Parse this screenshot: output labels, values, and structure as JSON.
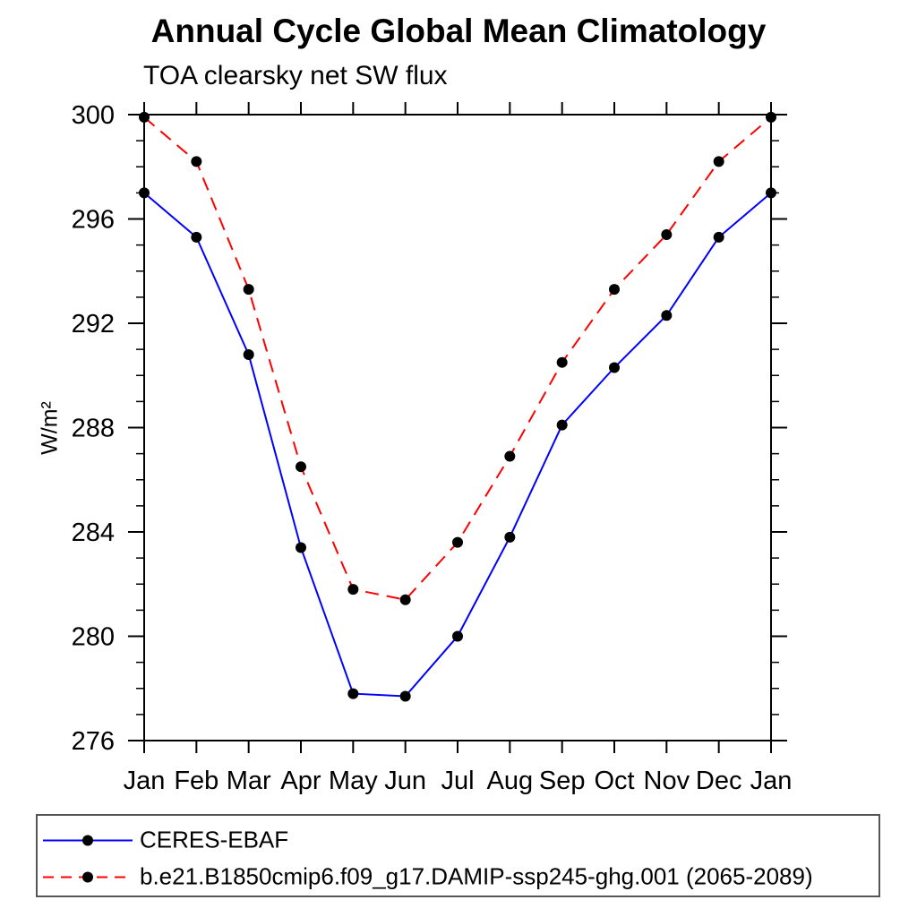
{
  "title": "Annual Cycle Global Mean Climatology",
  "subtitle": "TOA clearsky net SW flux",
  "chart_data": {
    "type": "line",
    "x_categories": [
      "Jan",
      "Feb",
      "Mar",
      "Apr",
      "May",
      "Jun",
      "Jul",
      "Aug",
      "Sep",
      "Oct",
      "Nov",
      "Dec",
      "Jan"
    ],
    "ylabel": "W/m²",
    "ylim": [
      276,
      300
    ],
    "yticks_major": [
      276,
      280,
      284,
      288,
      292,
      296,
      300
    ],
    "ytick_minor_step": 1,
    "grid": false,
    "legend_position": "bottom-box",
    "marker_color": "#000000",
    "frame_color": "#000000",
    "series": [
      {
        "name": "CERES-EBAF",
        "color": "#0000ff",
        "line_style": "solid",
        "marker": "filled-circle",
        "values": [
          297.0,
          295.3,
          290.8,
          283.4,
          277.8,
          277.7,
          280.0,
          283.8,
          288.1,
          290.3,
          292.3,
          295.3,
          297.0
        ]
      },
      {
        "name": "b.e21.B1850cmip6.f09_g17.DAMIP-ssp245-ghg.001 (2065-2089)",
        "color": "#ff0000",
        "line_style": "dashed",
        "marker": "filled-circle",
        "values": [
          299.9,
          298.2,
          293.3,
          286.5,
          281.8,
          281.4,
          283.6,
          286.9,
          290.5,
          293.3,
          295.4,
          298.2,
          299.9
        ]
      }
    ]
  }
}
